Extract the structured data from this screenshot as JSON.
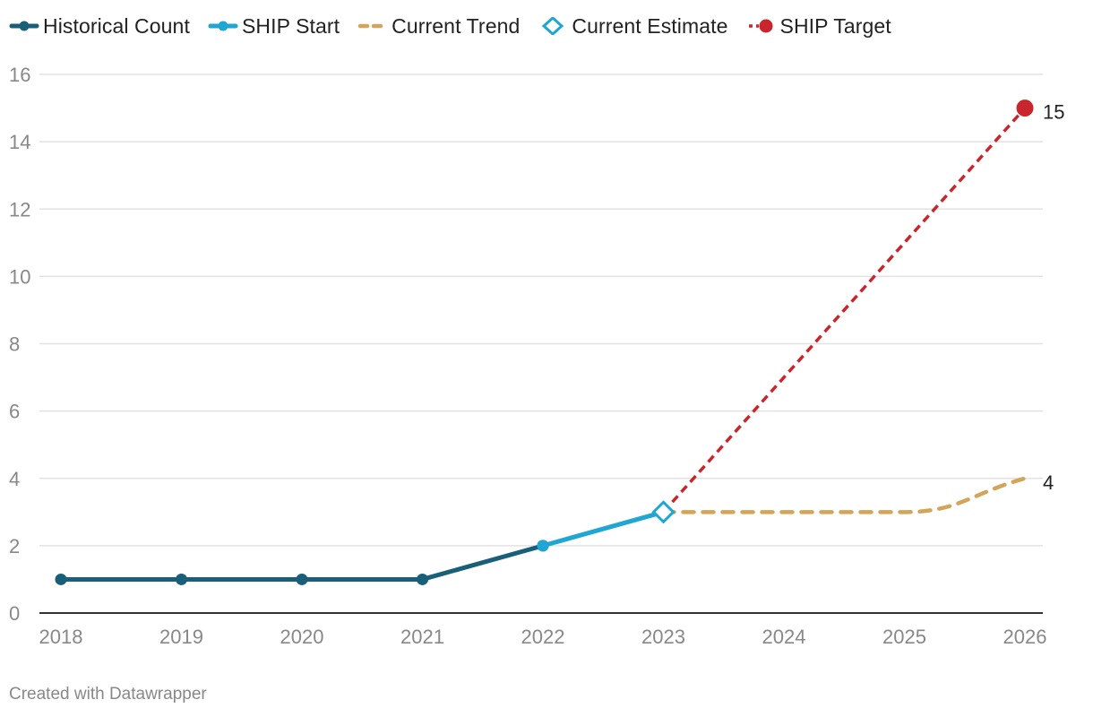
{
  "chart_data": {
    "type": "line",
    "title": "",
    "xlabel": "",
    "ylabel": "",
    "x": [
      2018,
      2019,
      2020,
      2021,
      2022,
      2023,
      2024,
      2025,
      2026
    ],
    "x_tick_labels": [
      "2018",
      "2019",
      "2020",
      "2021",
      "2022",
      "2023",
      "2024",
      "2025",
      "2026"
    ],
    "ylim": [
      0,
      16
    ],
    "y_ticks": [
      0,
      2,
      4,
      6,
      8,
      10,
      12,
      14,
      16
    ],
    "y_tick_labels": [
      "0",
      "2",
      "4",
      "6",
      "8",
      "10",
      "12",
      "14",
      "16"
    ],
    "grid": true,
    "legend_position": "top-left",
    "series": [
      {
        "key": "historical",
        "name": "Historical Count",
        "color": "#1a5f7a",
        "style": "solid",
        "marker": "circle",
        "points": [
          [
            2018,
            1
          ],
          [
            2019,
            1
          ],
          [
            2020,
            1
          ],
          [
            2021,
            1
          ],
          [
            2022,
            2
          ]
        ]
      },
      {
        "key": "ship_start",
        "name": "SHIP Start",
        "color": "#1fa6d3",
        "style": "solid",
        "marker": "circle",
        "points": [
          [
            2022,
            2
          ],
          [
            2023,
            3
          ]
        ]
      },
      {
        "key": "current_trend",
        "name": "Current Trend",
        "color": "#d3a55a",
        "style": "dashed",
        "marker": "none",
        "points": [
          [
            2023,
            3
          ],
          [
            2024,
            3
          ],
          [
            2025,
            3
          ],
          [
            2026,
            4
          ]
        ],
        "end_label": "4"
      },
      {
        "key": "current_estimate",
        "name": "Current Estimate",
        "color": "#1fa6d3",
        "style": "none",
        "marker": "diamond-open",
        "points": [
          [
            2023,
            3
          ]
        ]
      },
      {
        "key": "ship_target",
        "name": "SHIP Target",
        "color": "#c8262c",
        "style": "dashed",
        "marker": "circle",
        "points": [
          [
            2023,
            3
          ],
          [
            2026,
            15
          ]
        ],
        "end_label": "15"
      }
    ]
  },
  "credit": "Created with Datawrapper"
}
